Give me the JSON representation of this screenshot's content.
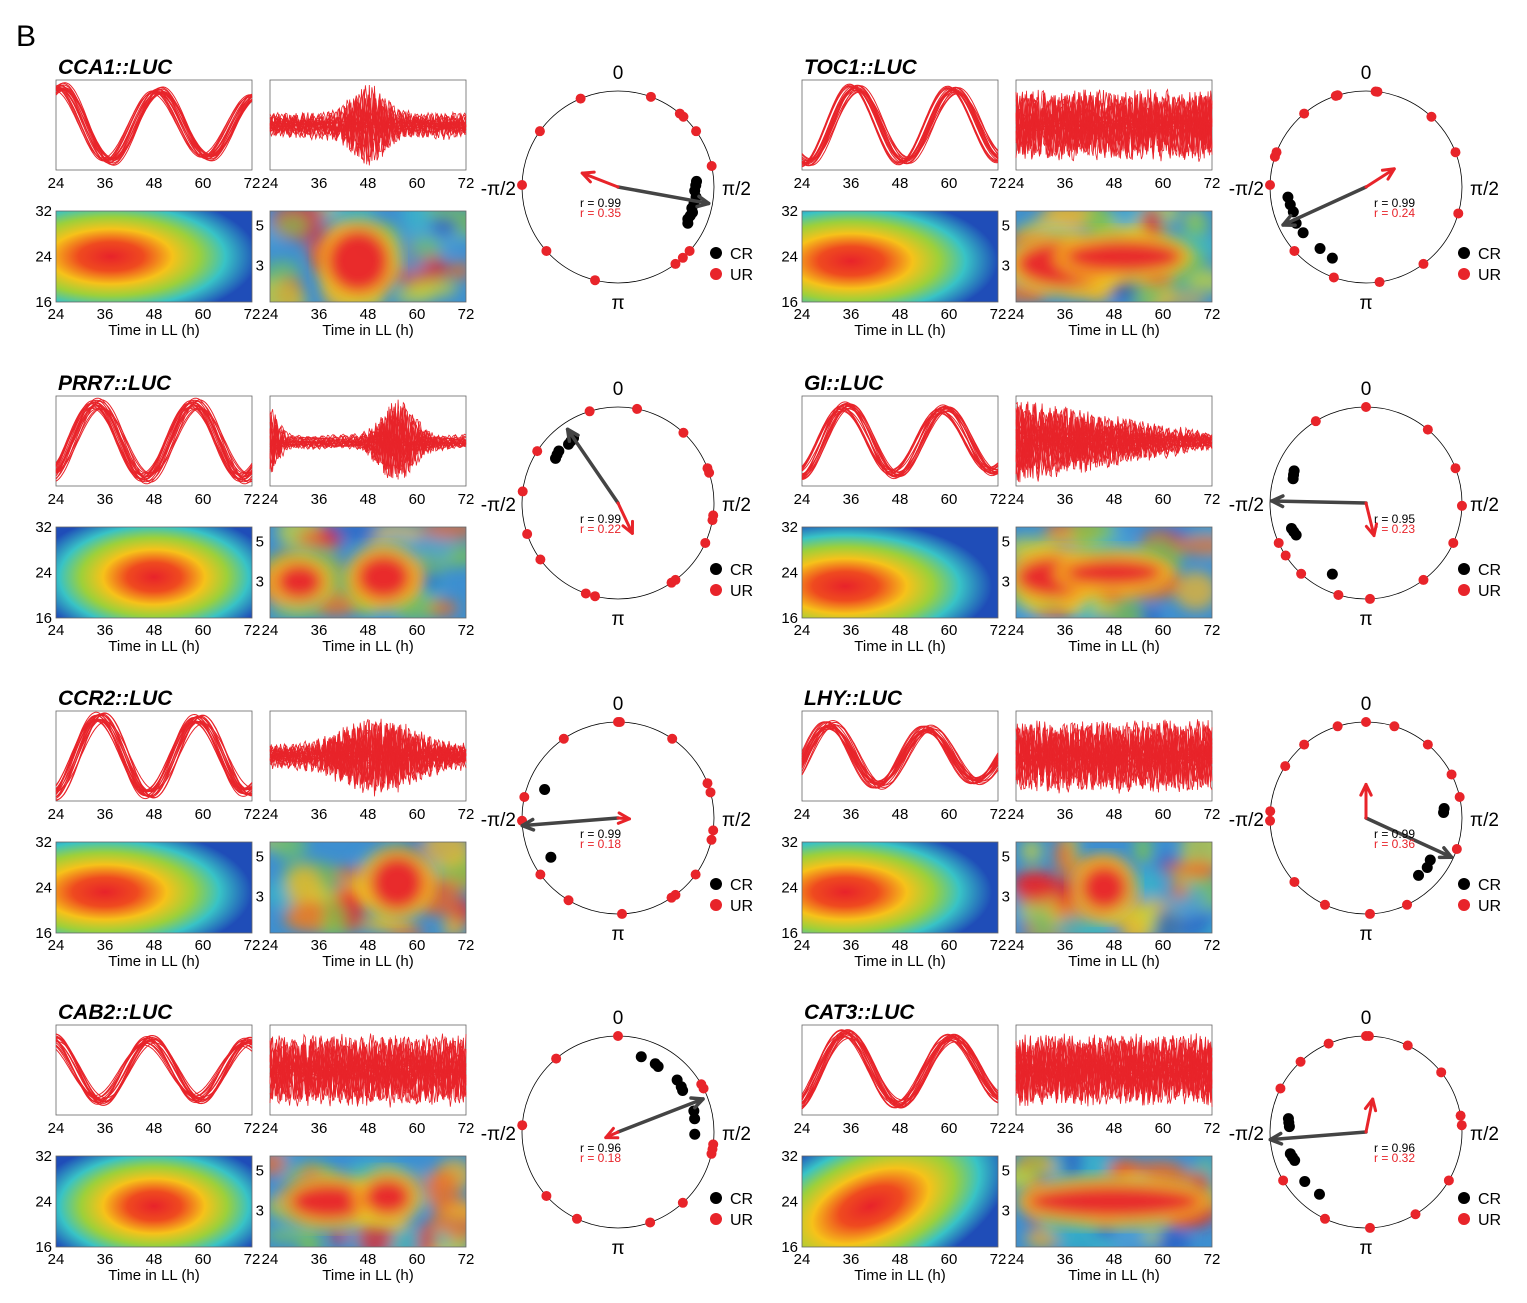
{
  "panel_label": "B",
  "legend": {
    "cr": "CR",
    "ur": "UR"
  },
  "polar_labels": {
    "top": "0",
    "right": "π/2",
    "left": "-π/2",
    "bottom": "π"
  },
  "axis": {
    "xlabel": "Time in LL (h)",
    "xticks": [
      24,
      36,
      48,
      60,
      72
    ],
    "period_ticks": [
      32,
      24,
      16
    ],
    "sub_ticks": [
      5,
      3
    ]
  },
  "colors": {
    "cr": "#000000",
    "ur": "#e8242a",
    "cr_arrow": "#444444",
    "ur_arrow": "#e8242a",
    "trace": "#e8242a"
  },
  "chart_data": [
    {
      "type": "polar",
      "gene": "CCA1::LUC",
      "r_cr": "0.99",
      "r_ur": "0.35",
      "cr_arrow_angle": 1.75,
      "cr_arrow_len": 0.96,
      "ur_arrow_angle": -1.2,
      "ur_arrow_len": 0.4,
      "cr_points": [
        1.5,
        1.55,
        1.62,
        1.7,
        1.78,
        1.85,
        1.9,
        1.95,
        2.0,
        2.05
      ],
      "ur_points": [
        -2.9,
        -2.3,
        -1.55,
        0.35,
        0.7,
        0.75,
        0.95,
        1.35,
        2.3,
        2.4,
        2.5,
        -0.95,
        -0.4
      ]
    },
    {
      "type": "polar",
      "gene": "TOC1::LUC",
      "r_cr": "0.99",
      "r_ur": "0.24",
      "cr_arrow_angle": -2.0,
      "cr_arrow_len": 0.95,
      "ur_arrow_angle": 1.0,
      "ur_arrow_len": 0.35,
      "cr_points": [
        -1.7,
        -1.8,
        -1.9,
        -2.05,
        -2.2,
        -2.5,
        -2.7
      ],
      "ur_points": [
        0.1,
        0.12,
        -0.3,
        -0.32,
        -0.7,
        -1.2,
        -1.25,
        -1.55,
        -2.3,
        -2.8,
        3.0,
        2.5,
        1.85,
        1.2,
        0.75
      ]
    },
    {
      "type": "polar",
      "gene": "PRR7::LUC",
      "r_cr": "0.99",
      "r_ur": "0.22",
      "cr_arrow_angle": -0.6,
      "cr_arrow_len": 0.93,
      "ur_arrow_angle": 2.7,
      "ur_arrow_len": 0.35,
      "cr_points": [
        -0.6,
        -0.65,
        -0.7,
        -0.85,
        -0.9,
        -0.95
      ],
      "ur_points": [
        -0.3,
        0.2,
        0.75,
        1.2,
        1.25,
        1.7,
        1.75,
        2.0,
        2.5,
        2.55,
        -2.8,
        -2.9,
        -2.2,
        -1.9,
        -1.45,
        -1.0
      ]
    },
    {
      "type": "polar",
      "gene": "GI::LUC",
      "r_cr": "0.95",
      "r_ur": "0.23",
      "cr_arrow_angle": -1.55,
      "cr_arrow_len": 0.98,
      "ur_arrow_angle": 2.9,
      "ur_arrow_len": 0.35,
      "cr_points": [
        -1.15,
        -1.2,
        -1.25,
        -1.9,
        -1.95,
        -2.0,
        -2.7
      ],
      "ur_points": [
        0.0,
        0.7,
        1.2,
        1.6,
        2.0,
        2.5,
        -2.85,
        -2.4,
        -2.15,
        -2.0,
        -0.55,
        3.1
      ]
    },
    {
      "type": "polar",
      "gene": "CCR2::LUC",
      "r_cr": "0.99",
      "r_ur": "0.18",
      "cr_arrow_angle": -1.65,
      "cr_arrow_len": 1.0,
      "ur_arrow_angle": 1.65,
      "ur_arrow_len": 0.12,
      "cr_points": [
        -1.2,
        -2.1
      ],
      "ur_points": [
        0.0,
        0.02,
        -0.6,
        -1.6,
        0.6,
        1.2,
        1.3,
        1.7,
        1.8,
        2.2,
        2.5,
        2.55,
        3.1,
        -2.6,
        -2.2,
        -1.35
      ]
    },
    {
      "type": "polar",
      "gene": "LHY::LUC",
      "r_cr": "0.99",
      "r_ur": "0.36",
      "cr_arrow_angle": 2.0,
      "cr_arrow_len": 0.98,
      "ur_arrow_angle": 0.0,
      "ur_arrow_len": 0.35,
      "cr_points": [
        1.45,
        1.5,
        2.15,
        2.25,
        2.4
      ],
      "ur_points": [
        0.0,
        -0.3,
        0.3,
        -0.7,
        0.7,
        1.1,
        -1.0,
        -1.5,
        -1.6,
        -2.3,
        2.7,
        3.1,
        -2.7,
        1.35,
        1.9
      ]
    },
    {
      "type": "polar",
      "gene": "CAB2::LUC",
      "r_cr": "0.96",
      "r_ur": "0.18",
      "cr_arrow_angle": 1.2,
      "cr_arrow_len": 0.95,
      "ur_arrow_angle": -2.0,
      "ur_arrow_len": 0.14,
      "cr_points": [
        0.3,
        0.5,
        0.55,
        0.85,
        0.95,
        1.0,
        1.3,
        1.4,
        1.6
      ],
      "ur_points": [
        0.0,
        -0.7,
        -1.5,
        -2.3,
        -2.7,
        2.8,
        2.4,
        1.8,
        1.7,
        1.75,
        1.1,
        1.05
      ]
    },
    {
      "type": "polar",
      "gene": "CAT3::LUC",
      "r_cr": "0.96",
      "r_ur": "0.32",
      "cr_arrow_angle": -1.65,
      "cr_arrow_len": 1.0,
      "ur_arrow_angle": 0.2,
      "ur_arrow_len": 0.35,
      "cr_points": [
        -1.4,
        -1.45,
        -1.5,
        -1.85,
        -1.9,
        -1.95,
        -2.25,
        -2.5
      ],
      "ur_points": [
        0.0,
        0.03,
        0.45,
        0.9,
        1.4,
        -0.4,
        -0.75,
        -1.1,
        -2.1,
        -2.7,
        3.1,
        2.6,
        2.1,
        1.5
      ]
    }
  ]
}
